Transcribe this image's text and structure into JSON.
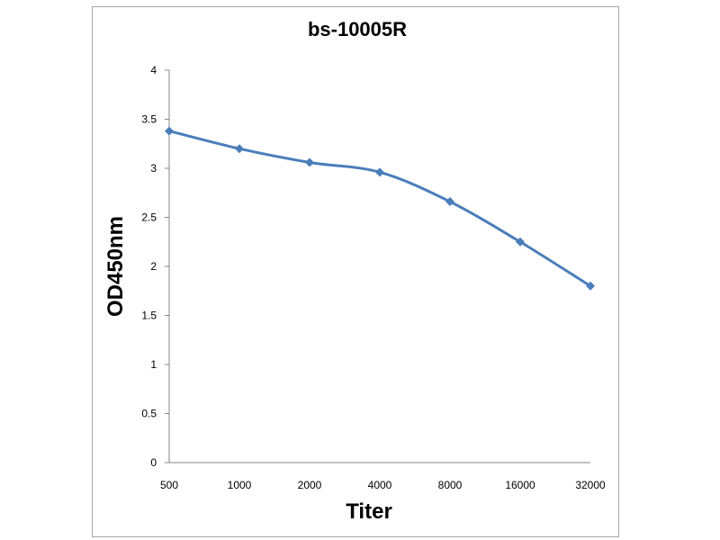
{
  "chart_data": {
    "type": "line",
    "title": "bs-10005R",
    "xlabel": "Titer",
    "ylabel": "OD450nm",
    "categories": [
      "500",
      "1000",
      "2000",
      "4000",
      "8000",
      "16000",
      "32000"
    ],
    "series": [
      {
        "values": [
          3.38,
          3.2,
          3.06,
          2.96,
          2.66,
          2.25,
          1.8
        ]
      }
    ],
    "ylim": [
      0,
      4
    ],
    "yticks": [
      "0",
      "0.5",
      "1",
      "1.5",
      "2",
      "2.5",
      "3",
      "3.5",
      "4"
    ],
    "grid": false,
    "legend": "none",
    "colors": {
      "line": "#4a7ebb",
      "axis": "#868686",
      "frame": "#a6a6a6"
    }
  }
}
